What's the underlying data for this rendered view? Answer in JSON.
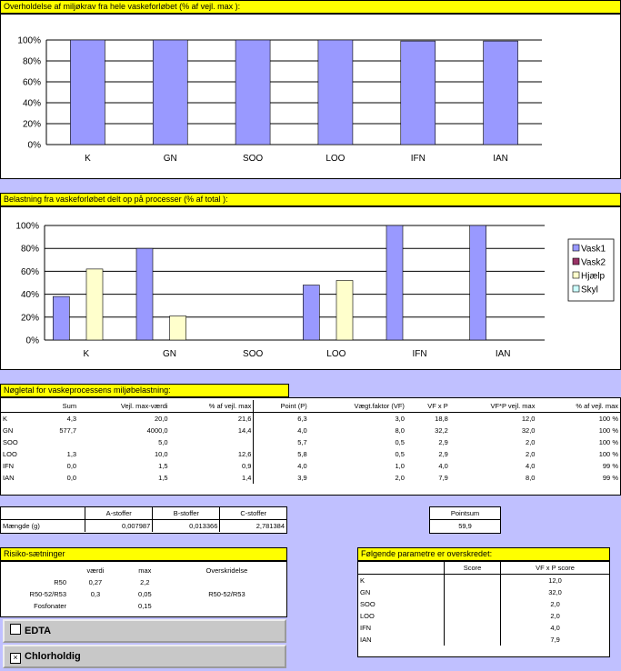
{
  "chart1": {
    "title": "Overholdelse af miljøkrav fra hele vaskeforløbet (% af vejl. max ):"
  },
  "chart2": {
    "title": "Belastning fra vaskeforløbet delt op på processer (% af total ):"
  },
  "chart_data": [
    {
      "type": "bar",
      "categories": [
        "K",
        "GN",
        "SOO",
        "LOO",
        "IFN",
        "IAN"
      ],
      "series": [
        {
          "values": [
            100,
            100,
            100,
            100,
            99,
            99
          ]
        }
      ],
      "yticks": [
        "0%",
        "20%",
        "40%",
        "60%",
        "80%",
        "100%"
      ],
      "ylim": [
        0,
        100
      ],
      "grid": true,
      "colors": [
        "#9999ff"
      ]
    },
    {
      "type": "bar",
      "categories": [
        "K",
        "GN",
        "SOO",
        "LOO",
        "IFN",
        "IAN"
      ],
      "series": [
        {
          "name": "Vask1",
          "values": [
            38,
            80,
            0,
            48,
            100,
            100
          ]
        },
        {
          "name": "Vask2",
          "values": [
            0,
            0,
            0,
            0,
            0,
            0
          ]
        },
        {
          "name": "Hjælp",
          "values": [
            62,
            21,
            0,
            52,
            0,
            0
          ]
        },
        {
          "name": "Skyl",
          "values": [
            0,
            0,
            0,
            0,
            0,
            0
          ]
        }
      ],
      "yticks": [
        "0%",
        "20%",
        "40%",
        "60%",
        "80%",
        "100%"
      ],
      "ylim": [
        0,
        100
      ],
      "grid": true,
      "legend": "right",
      "colors": [
        "#9999ff",
        "#993366",
        "#ffffcc",
        "#ccffff"
      ]
    }
  ],
  "table1": {
    "title": "Nøgletal for vaskeprocessens miljøbelastning:",
    "headers": [
      "",
      "Sum",
      "Vejl. max-værdi",
      "% af vejl. max",
      "Point (P)",
      "Vægt.faktor (VF)",
      "VF x P",
      "VF*P vejl. max",
      "% af vejl. max"
    ],
    "rows": [
      [
        "K",
        "4,3",
        "20,0",
        "21,6",
        "6,3",
        "3,0",
        "18,8",
        "12,0",
        "100 %"
      ],
      [
        "GN",
        "577,7",
        "4000,0",
        "14,4",
        "4,0",
        "8,0",
        "32,2",
        "32,0",
        "100 %"
      ],
      [
        "SOO",
        "",
        "5,0",
        "",
        "5,7",
        "0,5",
        "2,9",
        "2,0",
        "100 %"
      ],
      [
        "LOO",
        "1,3",
        "10,0",
        "12,6",
        "5,8",
        "0,5",
        "2,9",
        "2,0",
        "100 %"
      ],
      [
        "IFN",
        "0,0",
        "1,5",
        "0,9",
        "4,0",
        "1,0",
        "4,0",
        "4,0",
        "99 %"
      ],
      [
        "IAN",
        "0,0",
        "1,5",
        "1,4",
        "3,9",
        "2,0",
        "7,9",
        "8,0",
        "99 %"
      ]
    ]
  },
  "stoffer": {
    "headers": [
      "",
      "A-stoffer",
      "B-stoffer",
      "C-stoffer"
    ],
    "row_label": "Mængde (g)",
    "values": [
      "0,007987",
      "0,013366",
      "2,781384"
    ]
  },
  "pointsum": {
    "label": "Pointsum",
    "value": "59,9"
  },
  "risiko": {
    "title": "Risiko-sætninger",
    "headers": [
      "",
      "værdi",
      "max",
      "Overskridelse"
    ],
    "rows": [
      [
        "R50",
        "0,27",
        "2,2",
        ""
      ],
      [
        "R50-52/R53",
        "0,3",
        "0,05",
        "R50-52/R53"
      ],
      [
        "Fosfonater",
        "",
        "0,15",
        ""
      ]
    ]
  },
  "edta": {
    "label": "EDTA",
    "checked": false
  },
  "chlor": {
    "label": "Chlorholdig",
    "checked": true,
    "mark": "×"
  },
  "params": {
    "title": "Følgende parametre er overskredet:",
    "headers": [
      "",
      "Score",
      "VF x P score"
    ],
    "rows": [
      [
        "K",
        "",
        "12,0"
      ],
      [
        "GN",
        "",
        "32,0"
      ],
      [
        "SOO",
        "",
        "2,0"
      ],
      [
        "LOO",
        "",
        "2,0"
      ],
      [
        "IFN",
        "",
        "4,0"
      ],
      [
        "IAN",
        "",
        "7,9"
      ]
    ]
  }
}
